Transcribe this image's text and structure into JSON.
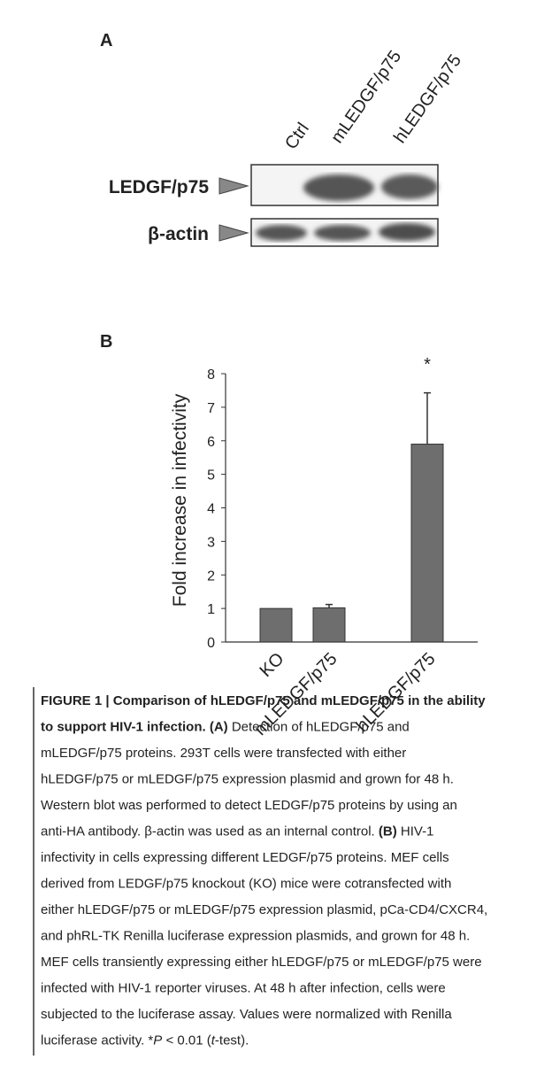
{
  "panel_a": {
    "label": "A",
    "lanes": [
      "Ctrl",
      "mLEDGF/p75",
      "hLEDGF/p75"
    ],
    "rows": [
      "LEDGF/p75",
      "β-actin"
    ]
  },
  "panel_b": {
    "label": "B"
  },
  "chart_data": {
    "type": "bar",
    "y_label": "Fold increase in infectivity",
    "categories": [
      "KO",
      "mLEDGF/p75",
      "hLEDGF/p75"
    ],
    "series": [
      {
        "color": "#6e6e6e",
        "values": [
          1,
          1.02,
          5.9
        ],
        "errors": [
          null,
          0.1,
          1.53
        ]
      }
    ],
    "annotation": "*",
    "ylim": [
      0,
      8
    ],
    "yticks": [
      0,
      1,
      2,
      3,
      4,
      5,
      6,
      7,
      8
    ],
    "grid": false
  },
  "caption": {
    "lines": [
      [
        {
          "text": "FIGURE 1 | Comparison of hLEDGF/p75 and mLEDGF/p75 in the ability",
          "bold": true
        }
      ],
      [
        {
          "text": "to support HIV-1 infection. (A)",
          "bold": true
        },
        {
          "text": " Detection of hLEDGF/p75 and"
        }
      ],
      [
        {
          "text": "mLEDGF/p75 proteins. 293T cells were transfected with either"
        }
      ],
      [
        {
          "text": "hLEDGF/p75 or mLEDGF/p75 expression plasmid and grown for 48 h."
        }
      ],
      [
        {
          "text": "Western blot was performed to detect LEDGF/p75 proteins by using an"
        }
      ],
      [
        {
          "text": "anti-HA antibody. β-actin was used as an internal control. "
        },
        {
          "text": "(B)",
          "bold": true
        },
        {
          "text": " HIV-1"
        }
      ],
      [
        {
          "text": "infectivity in cells expressing different LEDGF/p75 proteins. MEF cells"
        }
      ],
      [
        {
          "text": "derived from LEDGF/p75 knockout (KO) mice were cotransfected with"
        }
      ],
      [
        {
          "text": "either hLEDGF/p75 or mLEDGF/p75 expression plasmid, pCa-CD4/CXCR4,"
        }
      ],
      [
        {
          "text": "and phRL-TK Renilla luciferase expression plasmids, and grown for 48 h."
        }
      ],
      [
        {
          "text": "MEF cells transiently expressing either hLEDGF/p75 or mLEDGF/p75 were"
        }
      ],
      [
        {
          "text": "infected with HIV-1 reporter viruses. At 48 h after infection, cells were"
        }
      ],
      [
        {
          "text": "subjected to the luciferase assay. Values were normalized with Renilla"
        }
      ],
      [
        {
          "text": "luciferase activity. *"
        },
        {
          "text": "P",
          "italic": true
        },
        {
          "text": " < 0.01 ("
        },
        {
          "text": "t",
          "italic": true
        },
        {
          "text": "-test)."
        }
      ]
    ]
  }
}
